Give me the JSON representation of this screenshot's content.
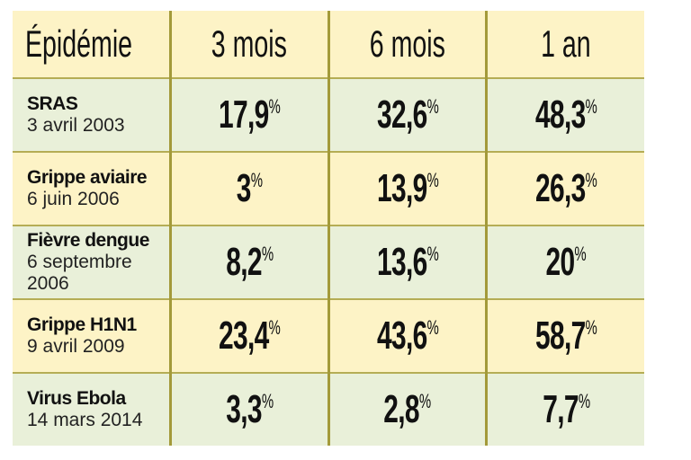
{
  "table": {
    "header": [
      "Épidémie",
      "3 mois",
      "6 mois",
      "1 an"
    ],
    "rows": [
      {
        "name": "SRAS",
        "date": "3 avril 2003",
        "cells": [
          {
            "value": "17,9",
            "unit": "%"
          },
          {
            "value": "32,6",
            "unit": "%"
          },
          {
            "value": "48,3",
            "unit": "%"
          }
        ]
      },
      {
        "name": "Grippe aviaire",
        "date": "6 juin 2006",
        "cells": [
          {
            "value": "3",
            "unit": "%"
          },
          {
            "value": "13,9",
            "unit": "%"
          },
          {
            "value": "26,3",
            "unit": "%"
          }
        ]
      },
      {
        "name": "Fièvre dengue",
        "date": "6 septembre 2006",
        "cells": [
          {
            "value": "8,2",
            "unit": "%"
          },
          {
            "value": "13,6",
            "unit": "%"
          },
          {
            "value": "20",
            "unit": "%"
          }
        ]
      },
      {
        "name": "Grippe H1N1",
        "date": "9 avril 2009",
        "cells": [
          {
            "value": "23,4",
            "unit": "%"
          },
          {
            "value": "43,6",
            "unit": "%"
          },
          {
            "value": "58,7",
            "unit": "%"
          }
        ]
      },
      {
        "name": "Virus Ebola",
        "date": "14 mars 2014",
        "cells": [
          {
            "value": "3,3",
            "unit": "%"
          },
          {
            "value": "2,8",
            "unit": "%"
          },
          {
            "value": "7,7",
            "unit": "%"
          }
        ]
      }
    ]
  }
}
